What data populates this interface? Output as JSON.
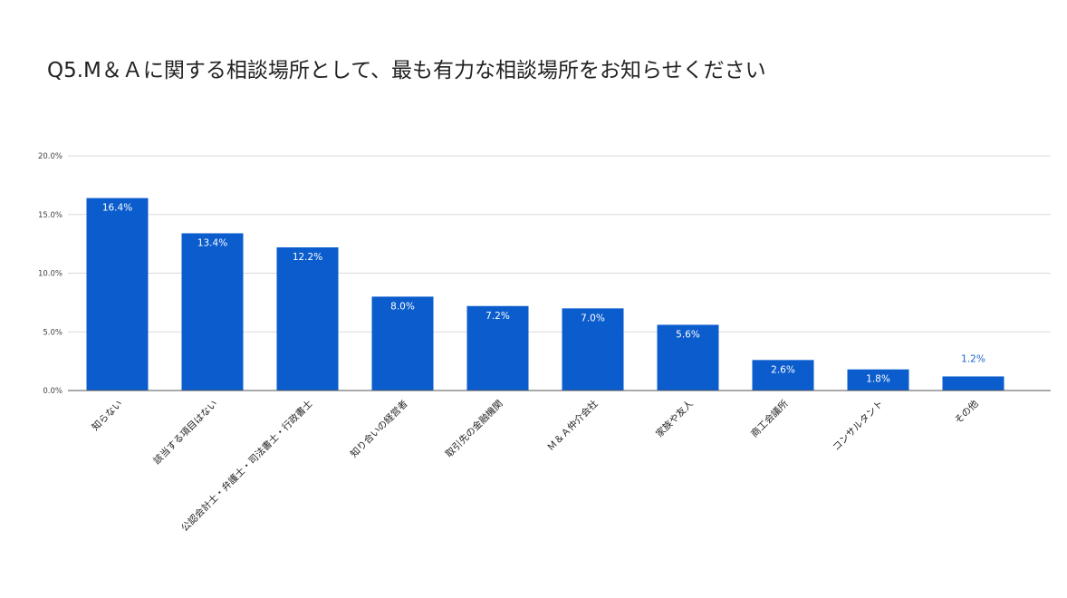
{
  "title": "Q5.M＆Ａに関する相談場所として、最も有力な相談場所をお知らせください",
  "colors": {
    "bar": "#0b5ccc",
    "label_inside": "#ffffff",
    "label_outside": "#1a66cc",
    "grid": "#d9d9d9",
    "axis": "#555555"
  },
  "chart_data": {
    "type": "bar",
    "title": "Q5.M＆Ａに関する相談場所として、最も有力な相談場所をお知らせください",
    "categories": [
      "知らない",
      "該当する項目はない",
      "公認会計士・弁護士・司法書士・行政書士",
      "知り合いの経営者",
      "取引先の金融機関",
      "Ｍ＆Ａ仲介会社",
      "家族や友人",
      "商工会議所",
      "コンサルタント",
      "その他"
    ],
    "values": [
      16.4,
      13.4,
      12.2,
      8.0,
      7.2,
      7.0,
      5.6,
      2.6,
      1.8,
      1.2
    ],
    "value_labels": [
      "16.4%",
      "13.4%",
      "12.2%",
      "8.0%",
      "7.2%",
      "7.0%",
      "5.6%",
      "2.6%",
      "1.8%",
      "1.2%"
    ],
    "yticks": [
      0,
      5,
      10,
      15,
      20
    ],
    "ytick_labels": [
      "0.0%",
      "5.0%",
      "10.0%",
      "15.0%",
      "20.0%"
    ],
    "ylim": [
      0,
      20
    ],
    "xlabel": "",
    "ylabel": "",
    "grid": true,
    "legend": "none"
  }
}
